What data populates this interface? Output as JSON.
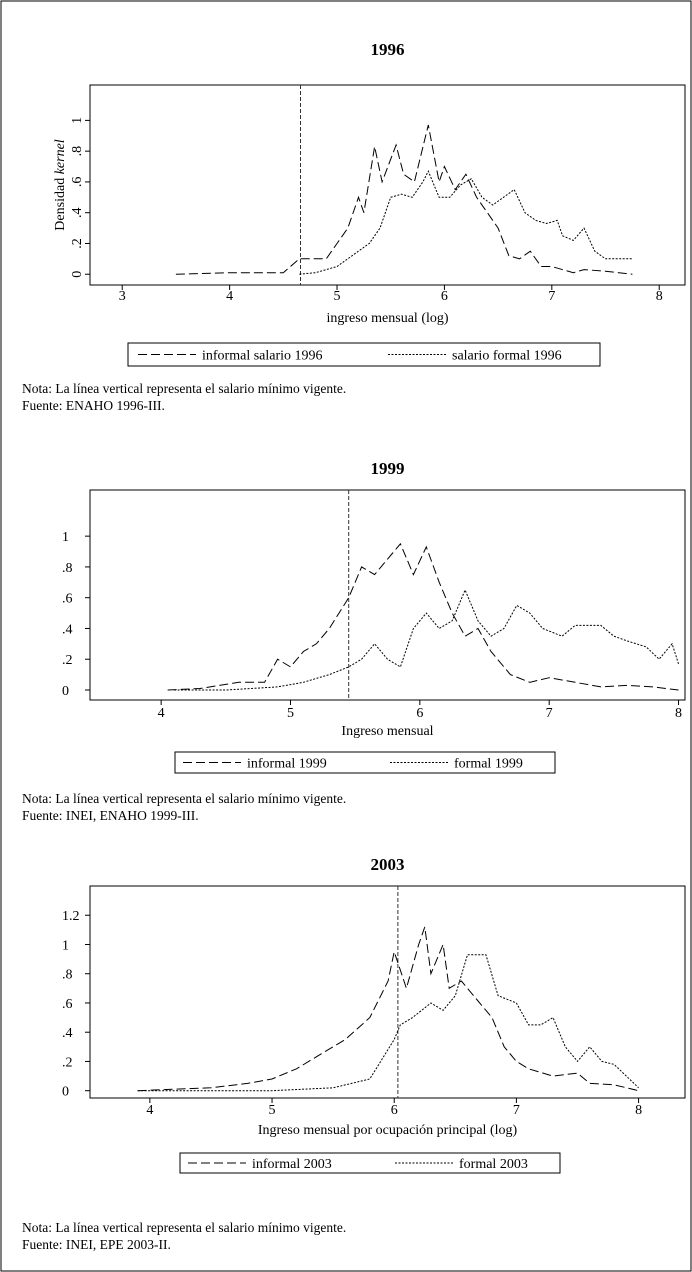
{
  "chart_data": [
    {
      "type": "line",
      "title": "1996",
      "xlabel": "ingreso mensual (log)",
      "ylabel": "Densidad",
      "ylabel_italic": "kernel",
      "xlim": [
        2.7,
        8.24
      ],
      "ylim": [
        -0.07,
        1.23
      ],
      "xticks": [
        3,
        4,
        5,
        6,
        7,
        8
      ],
      "yticks": [
        0,
        {
          "value": 0.2,
          "label": ".2"
        },
        {
          "value": 0.4,
          "label": ".4"
        },
        {
          "value": 0.6,
          "label": ".6"
        },
        {
          "value": 0.8,
          "label": ".8"
        },
        1
      ],
      "rotated_yticks": true,
      "vline": 4.66,
      "series": [
        {
          "name": "informal salario 1996",
          "color": "#000000",
          "dash": "long",
          "x": [
            3.5,
            4.0,
            4.5,
            4.65,
            4.9,
            5.0,
            5.1,
            5.2,
            5.25,
            5.35,
            5.42,
            5.55,
            5.62,
            5.72,
            5.85,
            5.95,
            6.0,
            6.1,
            6.2,
            6.3,
            6.4,
            6.5,
            6.6,
            6.7,
            6.8,
            6.9,
            7.0,
            7.2,
            7.3,
            7.5,
            7.75
          ],
          "values": [
            0,
            0.01,
            0.01,
            0.1,
            0.1,
            0.2,
            0.3,
            0.5,
            0.4,
            0.83,
            0.6,
            0.84,
            0.65,
            0.6,
            0.97,
            0.6,
            0.7,
            0.55,
            0.65,
            0.5,
            0.4,
            0.3,
            0.12,
            0.1,
            0.15,
            0.05,
            0.05,
            0.01,
            0.03,
            0.02,
            0
          ]
        },
        {
          "name": "salario formal 1996",
          "color": "#000000",
          "dash": "short",
          "x": [
            4.65,
            4.8,
            5.0,
            5.1,
            5.3,
            5.4,
            5.5,
            5.6,
            5.7,
            5.8,
            5.85,
            5.95,
            6.05,
            6.15,
            6.25,
            6.35,
            6.45,
            6.55,
            6.65,
            6.75,
            6.85,
            6.95,
            7.05,
            7.1,
            7.2,
            7.3,
            7.4,
            7.5,
            7.6,
            7.75
          ],
          "values": [
            0,
            0.01,
            0.05,
            0.1,
            0.2,
            0.3,
            0.5,
            0.52,
            0.5,
            0.6,
            0.67,
            0.5,
            0.5,
            0.58,
            0.62,
            0.5,
            0.45,
            0.5,
            0.55,
            0.4,
            0.35,
            0.33,
            0.35,
            0.25,
            0.22,
            0.3,
            0.15,
            0.1,
            0.1,
            0.1
          ]
        }
      ],
      "notes": [
        "Nota: La línea vertical representa el salario mínimo vigente.",
        "Fuente: ENAHO 1996-III."
      ]
    },
    {
      "type": "line",
      "title": "1999",
      "xlabel": "Ingreso mensual",
      "xlim": [
        3.45,
        8.05
      ],
      "ylim": [
        -0.065,
        1.3
      ],
      "xticks": [
        4,
        5,
        6,
        7,
        8
      ],
      "yticks": [
        0,
        {
          "value": 0.2,
          "label": ".2"
        },
        {
          "value": 0.4,
          "label": ".4"
        },
        {
          "value": 0.6,
          "label": ".6"
        },
        {
          "value": 0.8,
          "label": ".8"
        },
        1
      ],
      "rotated_yticks": false,
      "vline": 5.45,
      "series": [
        {
          "name": "informal 1999",
          "color": "#000000",
          "dash": "long",
          "x": [
            4.05,
            4.3,
            4.6,
            4.8,
            4.9,
            5.0,
            5.1,
            5.2,
            5.3,
            5.45,
            5.55,
            5.65,
            5.75,
            5.85,
            5.95,
            6.05,
            6.15,
            6.25,
            6.35,
            6.45,
            6.55,
            6.7,
            6.85,
            7.0,
            7.2,
            7.4,
            7.6,
            7.8,
            8.0
          ],
          "values": [
            0,
            0.01,
            0.05,
            0.05,
            0.2,
            0.15,
            0.25,
            0.3,
            0.4,
            0.6,
            0.8,
            0.75,
            0.85,
            0.95,
            0.75,
            0.93,
            0.7,
            0.5,
            0.35,
            0.4,
            0.25,
            0.1,
            0.05,
            0.08,
            0.05,
            0.02,
            0.03,
            0.02,
            0
          ]
        },
        {
          "name": "formal 1999",
          "color": "#000000",
          "dash": "short",
          "x": [
            4.1,
            4.5,
            4.9,
            5.1,
            5.3,
            5.45,
            5.55,
            5.65,
            5.75,
            5.85,
            5.95,
            6.05,
            6.15,
            6.25,
            6.35,
            6.45,
            6.55,
            6.65,
            6.75,
            6.85,
            6.95,
            7.1,
            7.2,
            7.4,
            7.5,
            7.6,
            7.75,
            7.85,
            7.95,
            8.0
          ],
          "values": [
            0,
            0,
            0.02,
            0.05,
            0.1,
            0.15,
            0.2,
            0.3,
            0.2,
            0.15,
            0.4,
            0.5,
            0.4,
            0.45,
            0.65,
            0.45,
            0.35,
            0.4,
            0.55,
            0.5,
            0.4,
            0.35,
            0.42,
            0.42,
            0.35,
            0.32,
            0.28,
            0.2,
            0.3,
            0.17
          ]
        }
      ],
      "notes": [
        "Nota: La línea vertical representa el salario mínimo vigente.",
        "Fuente: INEI, ENAHO 1999-III."
      ]
    },
    {
      "type": "line",
      "title": "2003",
      "xlabel": "Ingreso mensual por ocupación principal (log)",
      "xlim": [
        3.51,
        8.38
      ],
      "ylim": [
        -0.05,
        1.4
      ],
      "xticks": [
        4,
        5,
        6,
        7,
        8
      ],
      "yticks": [
        0,
        {
          "value": 0.2,
          "label": ".2"
        },
        {
          "value": 0.4,
          "label": ".4"
        },
        {
          "value": 0.6,
          "label": ".6"
        },
        {
          "value": 0.8,
          "label": ".8"
        },
        1,
        1.2
      ],
      "rotated_yticks": false,
      "vline": 6.03,
      "series": [
        {
          "name": "informal 2003",
          "color": "#000000",
          "dash": "long",
          "x": [
            3.9,
            4.2,
            4.5,
            4.8,
            5.0,
            5.2,
            5.4,
            5.6,
            5.8,
            5.95,
            6.0,
            6.1,
            6.2,
            6.25,
            6.3,
            6.4,
            6.45,
            6.55,
            6.65,
            6.8,
            6.9,
            7.0,
            7.1,
            7.3,
            7.5,
            7.6,
            7.8,
            8.0
          ],
          "values": [
            0,
            0.01,
            0.02,
            0.05,
            0.08,
            0.15,
            0.25,
            0.35,
            0.5,
            0.75,
            0.95,
            0.7,
            1.0,
            1.12,
            0.8,
            1.0,
            0.7,
            0.75,
            0.65,
            0.5,
            0.3,
            0.2,
            0.15,
            0.1,
            0.12,
            0.05,
            0.04,
            0
          ]
        },
        {
          "name": "formal 2003",
          "color": "#000000",
          "dash": "short",
          "x": [
            3.9,
            4.5,
            5.0,
            5.5,
            5.8,
            6.0,
            6.05,
            6.15,
            6.3,
            6.4,
            6.5,
            6.6,
            6.75,
            6.85,
            7.0,
            7.1,
            7.2,
            7.3,
            7.4,
            7.5,
            7.6,
            7.7,
            7.8,
            8.0
          ],
          "values": [
            0,
            0,
            0,
            0.02,
            0.08,
            0.35,
            0.45,
            0.5,
            0.6,
            0.55,
            0.65,
            0.93,
            0.93,
            0.65,
            0.6,
            0.45,
            0.45,
            0.5,
            0.3,
            0.2,
            0.3,
            0.2,
            0.18,
            0.02
          ]
        }
      ],
      "notes": [
        "Nota: La línea vertical representa el salario mínimo vigente.",
        "Fuente: INEI, EPE 2003-II."
      ]
    }
  ]
}
